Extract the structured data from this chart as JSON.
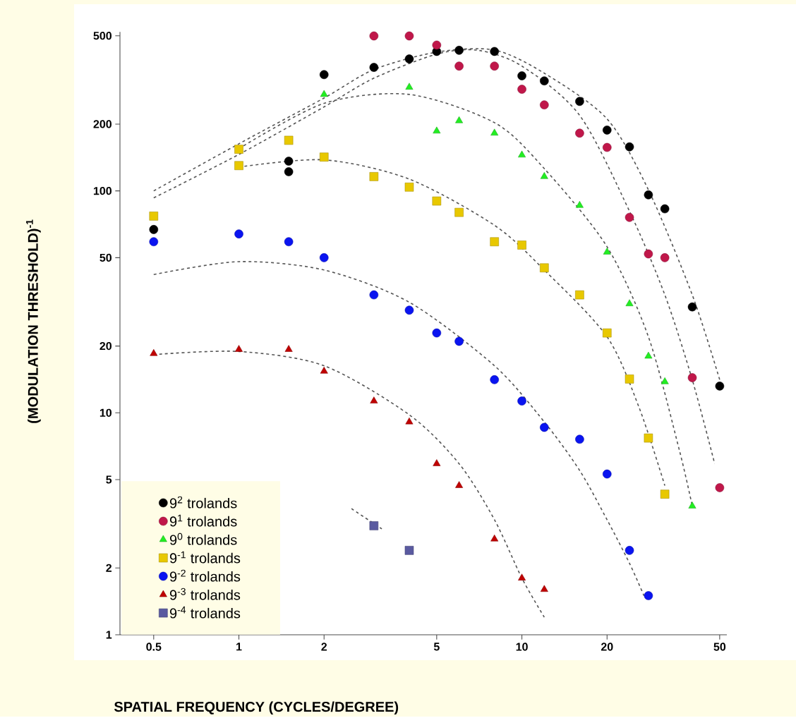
{
  "chart_data": {
    "type": "scatter",
    "xlabel": "SPATIAL FREQUENCY  (CYCLES/DEGREE)",
    "ylabel": "(MODULATION THRESHOLD)$^{-1}$",
    "log": "xy",
    "legend": "bottom left",
    "xlim": [
      0.38,
      53
    ],
    "ylim": [
      1,
      520
    ],
    "xticks": [
      0.5,
      1,
      2,
      5,
      10,
      20,
      50
    ],
    "yticks": [
      1,
      2,
      5,
      10,
      20,
      50,
      100,
      200,
      500
    ],
    "series": [
      {
        "type": "line",
        "marker": "none",
        "line_style": "dashed",
        "color": "#555555",
        "x": [
          0.5,
          1,
          2,
          3,
          5,
          8,
          12,
          20,
          28,
          40,
          50
        ],
        "values": [
          100,
          163,
          262,
          352,
          422,
          431,
          339,
          211,
          101,
          34,
          14.1
        ]
      },
      {
        "type": "line",
        "marker": "none",
        "line_style": "dashed",
        "color": "#555555",
        "x": [
          0.5,
          1,
          2,
          3,
          5,
          7,
          10,
          16,
          24,
          32,
          40,
          48
        ],
        "values": [
          93,
          146,
          239,
          322,
          413,
          430,
          365,
          219,
          81,
          34,
          14.1,
          5.9
        ]
      },
      {
        "type": "line",
        "marker": "none",
        "line_style": "dashed",
        "color": "#555555",
        "x": [
          1,
          2,
          4,
          8,
          12,
          20,
          28,
          36,
          40
        ],
        "values": [
          155,
          248,
          272,
          203,
          126,
          56,
          22,
          6.8,
          3.8
        ]
      },
      {
        "type": "line",
        "marker": "none",
        "line_style": "dashed",
        "color": "#555555",
        "x": [
          1,
          2,
          4,
          8,
          12,
          20,
          26,
          32
        ],
        "values": [
          128,
          138,
          113,
          70,
          44,
          22,
          10.5,
          4.7
        ]
      },
      {
        "type": "line",
        "marker": "none",
        "line_style": "dashed",
        "color": "#555555",
        "x": [
          0.5,
          1,
          2,
          4,
          8,
          12,
          16,
          20,
          24,
          27
        ],
        "values": [
          42,
          48,
          44,
          31.5,
          16.3,
          9.1,
          5.5,
          3.3,
          2.1,
          1.5
        ]
      },
      {
        "type": "line",
        "marker": "none",
        "line_style": "dashed",
        "color": "#555555",
        "x": [
          0.5,
          1,
          2,
          4,
          6,
          8,
          10,
          12
        ],
        "values": [
          18.3,
          18.9,
          16.3,
          9.8,
          5.9,
          3.3,
          1.8,
          1.2
        ]
      },
      {
        "type": "line",
        "marker": "none",
        "line_style": "dashed",
        "color": "#555555",
        "x": [
          2.5,
          3.2
        ],
        "values": [
          3.7,
          3.0
        ]
      },
      {
        "name": "9$^{2}$  trolands",
        "marker": "circle",
        "color": "#000000",
        "x": [
          0.5,
          1.5,
          1.5,
          2,
          3,
          4,
          5,
          6,
          8,
          10,
          12,
          16,
          20,
          24,
          28,
          32,
          40,
          50
        ],
        "values": [
          67,
          136,
          122,
          334,
          360,
          393,
          425,
          430,
          425,
          330,
          313,
          253,
          188,
          158,
          96,
          83,
          30,
          13.2
        ]
      },
      {
        "name": "9$^{1}$  trolands",
        "marker": "circle",
        "color": "#c0174a",
        "x": [
          3,
          4,
          5,
          6,
          8,
          10,
          12,
          16,
          20,
          24,
          28,
          32,
          40,
          50
        ],
        "values": [
          499,
          499,
          454,
          365,
          365,
          287,
          244,
          182,
          157,
          76,
          52,
          50,
          14.4,
          4.6
        ]
      },
      {
        "name": "9$^{0}$  trolands",
        "marker": "triangle",
        "color": "#22ee22",
        "x": [
          2,
          4,
          5,
          6,
          8,
          10,
          12,
          16,
          20,
          24,
          28,
          32,
          40
        ],
        "values": [
          272,
          293,
          186,
          207,
          182,
          145,
          116,
          86,
          53,
          31,
          18,
          13.8,
          3.8
        ]
      },
      {
        "name": "9$^{-1}$ trolands",
        "marker": "square",
        "color": "#e8c800",
        "x": [
          0.5,
          1,
          1,
          1.5,
          2,
          3,
          4,
          5,
          6,
          8,
          10,
          12,
          16,
          20,
          24,
          28,
          32
        ],
        "values": [
          77,
          154,
          130,
          169,
          142,
          116,
          104,
          90,
          80,
          59,
          57,
          45,
          34,
          22.9,
          14.2,
          7.7,
          4.3
        ]
      },
      {
        "name": "9$^{-2}$ trolands",
        "marker": "circle",
        "color": "#0a14f0",
        "x": [
          0.5,
          1,
          1.5,
          2,
          3,
          4,
          5,
          6,
          8,
          10,
          12,
          16,
          20,
          24,
          28
        ],
        "values": [
          59,
          64,
          59,
          50,
          34,
          29,
          22.9,
          21,
          14.1,
          11.3,
          8.6,
          7.6,
          5.3,
          2.4,
          1.5
        ]
      },
      {
        "name": "9$^{-3}$ trolands",
        "marker": "triangle",
        "color": "#c00000",
        "x": [
          0.5,
          1,
          1.5,
          2,
          3,
          4,
          5,
          6,
          8,
          10,
          12
        ],
        "values": [
          18.5,
          19.3,
          19.3,
          15.4,
          11.3,
          9.1,
          5.9,
          4.7,
          2.7,
          1.8,
          1.6
        ]
      },
      {
        "name": "9$^{-4}$ trolands",
        "marker": "square",
        "color": "#5a5aa0",
        "x": [
          3,
          4
        ],
        "values": [
          3.1,
          2.4
        ]
      }
    ]
  }
}
